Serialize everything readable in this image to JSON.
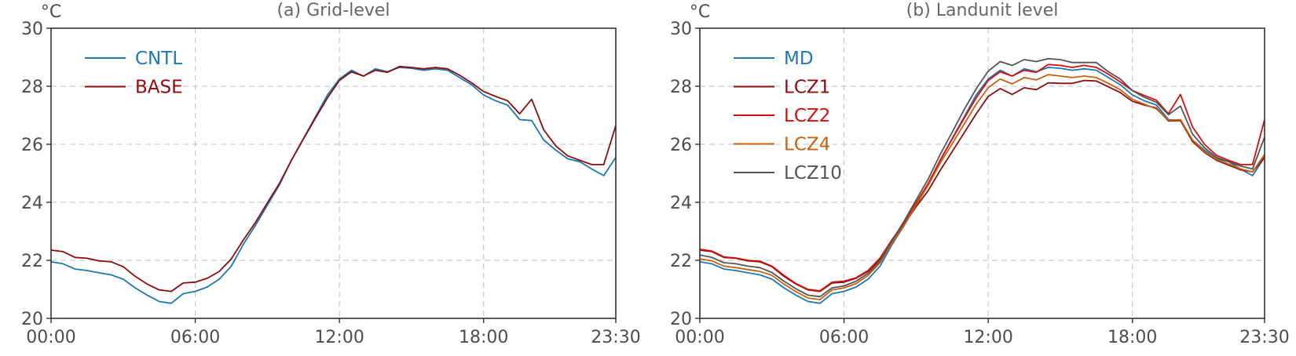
{
  "colors": {
    "axis": "#333333",
    "tick_text": "#4d4d4d",
    "title_text": "#666666",
    "grid": "#cccccc",
    "CNTL": "#1f77b4",
    "BASE": "#8c0c0c",
    "MD": "#1f77b4",
    "LCZ1": "#8c0c0c",
    "LCZ2": "#d40f0f",
    "LCZ4": "#c66110",
    "LCZ10": "#555555"
  },
  "chart_data": [
    {
      "type": "line",
      "title": "(a) Grid-level",
      "ylabel": "°C",
      "xlabel": "",
      "x_hours": [
        0,
        0.5,
        1,
        1.5,
        2,
        2.5,
        3,
        3.5,
        4,
        4.5,
        5,
        5.5,
        6,
        6.5,
        7,
        7.5,
        8,
        8.5,
        9,
        9.5,
        10,
        10.5,
        11,
        11.5,
        12,
        12.5,
        13,
        13.5,
        14,
        14.5,
        15,
        15.5,
        16,
        16.5,
        17,
        17.5,
        18,
        18.5,
        19,
        19.5,
        20,
        20.5,
        21,
        21.5,
        22,
        22.5,
        23,
        23.5
      ],
      "xticks": [
        "00:00",
        "06:00",
        "12:00",
        "18:00",
        "23:30"
      ],
      "xtick_hours": [
        0,
        6,
        12,
        18,
        23.5
      ],
      "ylim": [
        20,
        30
      ],
      "yticks": [
        "20",
        "22",
        "24",
        "26",
        "28",
        "30"
      ],
      "grid": true,
      "legend_position": "top-left",
      "series": [
        {
          "name": "CNTL",
          "color_key": "CNTL",
          "values": [
            21.95,
            21.88,
            21.7,
            21.65,
            21.57,
            21.5,
            21.35,
            21.05,
            20.8,
            20.58,
            20.52,
            20.85,
            20.93,
            21.08,
            21.35,
            21.8,
            22.55,
            23.2,
            23.9,
            24.6,
            25.45,
            26.2,
            26.95,
            27.7,
            28.25,
            28.55,
            28.35,
            28.6,
            28.5,
            28.65,
            28.62,
            28.55,
            28.6,
            28.55,
            28.3,
            28.05,
            27.7,
            27.5,
            27.35,
            26.85,
            26.82,
            26.15,
            25.8,
            25.5,
            25.4,
            25.15,
            24.92,
            25.55
          ]
        },
        {
          "name": "BASE",
          "color_key": "BASE",
          "values": [
            22.35,
            22.3,
            22.1,
            22.07,
            21.98,
            21.95,
            21.78,
            21.45,
            21.18,
            20.98,
            20.93,
            21.22,
            21.25,
            21.38,
            21.62,
            22.05,
            22.7,
            23.3,
            23.98,
            24.65,
            25.45,
            26.18,
            26.9,
            27.6,
            28.2,
            28.5,
            28.35,
            28.55,
            28.48,
            28.68,
            28.65,
            28.6,
            28.65,
            28.6,
            28.38,
            28.12,
            27.82,
            27.65,
            27.5,
            27.05,
            27.55,
            26.5,
            25.95,
            25.6,
            25.45,
            25.3,
            25.3,
            26.65
          ]
        }
      ]
    },
    {
      "type": "line",
      "title": "(b) Landunit level",
      "ylabel": "°C",
      "xlabel": "",
      "x_hours": [
        0,
        0.5,
        1,
        1.5,
        2,
        2.5,
        3,
        3.5,
        4,
        4.5,
        5,
        5.5,
        6,
        6.5,
        7,
        7.5,
        8,
        8.5,
        9,
        9.5,
        10,
        10.5,
        11,
        11.5,
        12,
        12.5,
        13,
        13.5,
        14,
        14.5,
        15,
        15.5,
        16,
        16.5,
        17,
        17.5,
        18,
        18.5,
        19,
        19.5,
        20,
        20.5,
        21,
        21.5,
        22,
        22.5,
        23,
        23.5
      ],
      "xticks": [
        "00:00",
        "06:00",
        "12:00",
        "18:00",
        "23:30"
      ],
      "xtick_hours": [
        0,
        6,
        12,
        18,
        23.5
      ],
      "ylim": [
        20,
        30
      ],
      "yticks": [
        "20",
        "22",
        "24",
        "26",
        "28",
        "30"
      ],
      "grid": true,
      "legend_position": "top-left",
      "series": [
        {
          "name": "MD",
          "color_key": "MD",
          "values": [
            21.95,
            21.88,
            21.7,
            21.65,
            21.57,
            21.5,
            21.35,
            21.05,
            20.8,
            20.58,
            20.52,
            20.85,
            20.93,
            21.08,
            21.35,
            21.8,
            22.55,
            23.2,
            23.9,
            24.6,
            25.45,
            26.2,
            26.95,
            27.7,
            28.25,
            28.55,
            28.35,
            28.6,
            28.5,
            28.65,
            28.62,
            28.55,
            28.6,
            28.55,
            28.3,
            28.05,
            27.7,
            27.5,
            27.35,
            26.85,
            26.82,
            26.15,
            25.8,
            25.5,
            25.4,
            25.15,
            24.92,
            25.55
          ]
        },
        {
          "name": "LCZ1",
          "color_key": "LCZ1",
          "values": [
            22.35,
            22.3,
            22.1,
            22.07,
            21.98,
            21.95,
            21.78,
            21.45,
            21.18,
            20.98,
            20.93,
            21.22,
            21.25,
            21.38,
            21.62,
            22.05,
            22.7,
            23.25,
            23.85,
            24.4,
            25.1,
            25.75,
            26.4,
            27.05,
            27.65,
            27.92,
            27.72,
            27.95,
            27.88,
            28.12,
            28.1,
            28.1,
            28.2,
            28.18,
            27.98,
            27.78,
            27.48,
            27.35,
            27.25,
            26.8,
            26.82,
            26.1,
            25.72,
            25.45,
            25.28,
            25.12,
            25.05,
            25.55
          ]
        },
        {
          "name": "LCZ2",
          "color_key": "LCZ2",
          "values": [
            22.38,
            22.32,
            22.12,
            22.08,
            22.0,
            21.97,
            21.8,
            21.48,
            21.2,
            21.0,
            20.95,
            21.25,
            21.28,
            21.4,
            21.65,
            22.08,
            22.72,
            23.3,
            23.98,
            24.65,
            25.45,
            26.18,
            26.9,
            27.6,
            28.2,
            28.5,
            28.35,
            28.55,
            28.48,
            28.75,
            28.72,
            28.65,
            28.72,
            28.65,
            28.42,
            28.15,
            27.85,
            27.68,
            27.52,
            27.05,
            27.72,
            26.6,
            26.0,
            25.62,
            25.45,
            25.3,
            25.3,
            26.85
          ]
        },
        {
          "name": "LCZ4",
          "color_key": "LCZ4",
          "values": [
            22.05,
            21.98,
            21.8,
            21.75,
            21.68,
            21.62,
            21.48,
            21.18,
            20.92,
            20.7,
            20.65,
            20.98,
            21.05,
            21.2,
            21.48,
            21.92,
            22.6,
            23.22,
            23.92,
            24.58,
            25.35,
            26.02,
            26.7,
            27.38,
            27.95,
            28.25,
            28.08,
            28.3,
            28.22,
            28.4,
            28.35,
            28.3,
            28.35,
            28.3,
            28.1,
            27.88,
            27.55,
            27.38,
            27.22,
            26.82,
            26.85,
            26.15,
            25.75,
            25.48,
            25.32,
            25.15,
            25.05,
            25.65
          ]
        },
        {
          "name": "LCZ10",
          "color_key": "LCZ10",
          "values": [
            22.18,
            22.1,
            21.92,
            21.88,
            21.8,
            21.75,
            21.58,
            21.28,
            21.02,
            20.8,
            20.75,
            21.05,
            21.12,
            21.28,
            21.55,
            21.98,
            22.68,
            23.35,
            24.08,
            24.8,
            25.65,
            26.42,
            27.2,
            27.92,
            28.52,
            28.85,
            28.72,
            28.92,
            28.85,
            28.95,
            28.92,
            28.82,
            28.82,
            28.82,
            28.5,
            28.25,
            27.85,
            27.62,
            27.45,
            27.02,
            27.32,
            26.35,
            25.88,
            25.55,
            25.4,
            25.25,
            25.15,
            26.25
          ]
        }
      ]
    }
  ]
}
